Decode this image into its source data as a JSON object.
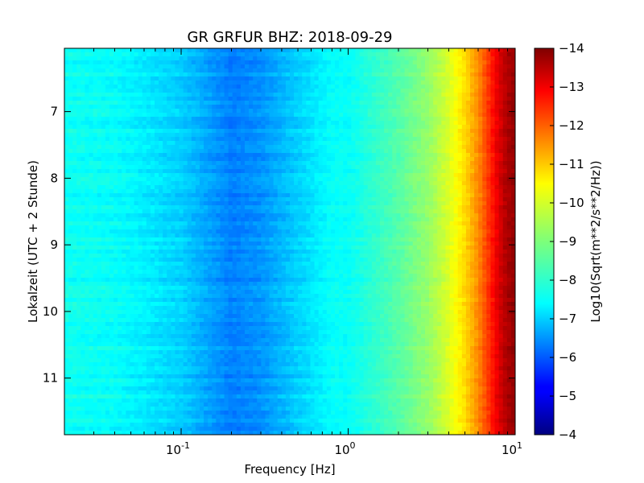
{
  "chart_data": {
    "type": "heatmap",
    "title": "GR GRFUR BHZ: 2018-09-29",
    "xlabel": "Frequency [Hz]",
    "ylabel": "Lokalzeit (UTC + 2 Stunde)",
    "x_scale": "log",
    "xlim": [
      0.02,
      10
    ],
    "ylim": [
      11.85,
      6.05
    ],
    "y_inverted": true,
    "x_ticks": [
      {
        "value": 0.1,
        "base": "10",
        "exp": "-1"
      },
      {
        "value": 1,
        "base": "10",
        "exp": "0"
      },
      {
        "value": 10,
        "base": "10",
        "exp": "1"
      }
    ],
    "y_ticks": [
      {
        "value": 7,
        "label": "7"
      },
      {
        "value": 8,
        "label": "8"
      },
      {
        "value": 9,
        "label": "9"
      },
      {
        "value": 10,
        "label": "10"
      },
      {
        "value": 11,
        "label": "11"
      }
    ],
    "colorbar": {
      "label": "Log10(Sqrt(m**2/s**2/Hz))",
      "range": [
        -14,
        -4
      ],
      "colormap": "jet",
      "ticks": [
        "-4",
        "-5",
        "-6",
        "-7",
        "-8",
        "-9",
        "-10",
        "-11",
        "-12",
        "-13",
        "-14"
      ]
    },
    "grid": false,
    "spectrum_profile": [
      {
        "freq": 0.02,
        "value": -7.9
      },
      {
        "freq": 0.04,
        "value": -7.8
      },
      {
        "freq": 0.06,
        "value": -7.6
      },
      {
        "freq": 0.1,
        "value": -7.3
      },
      {
        "freq": 0.14,
        "value": -6.9
      },
      {
        "freq": 0.2,
        "value": -6.5
      },
      {
        "freq": 0.3,
        "value": -6.7
      },
      {
        "freq": 0.5,
        "value": -7.3
      },
      {
        "freq": 0.8,
        "value": -7.8
      },
      {
        "freq": 1.0,
        "value": -7.8
      },
      {
        "freq": 2.0,
        "value": -8.6
      },
      {
        "freq": 3.0,
        "value": -9.2
      },
      {
        "freq": 4.0,
        "value": -9.9
      },
      {
        "freq": 5.0,
        "value": -10.6
      },
      {
        "freq": 6.0,
        "value": -11.4
      },
      {
        "freq": 7.0,
        "value": -12.3
      },
      {
        "freq": 8.0,
        "value": -13.1
      },
      {
        "freq": 9.0,
        "value": -13.6
      },
      {
        "freq": 10.0,
        "value": -13.8
      }
    ]
  }
}
